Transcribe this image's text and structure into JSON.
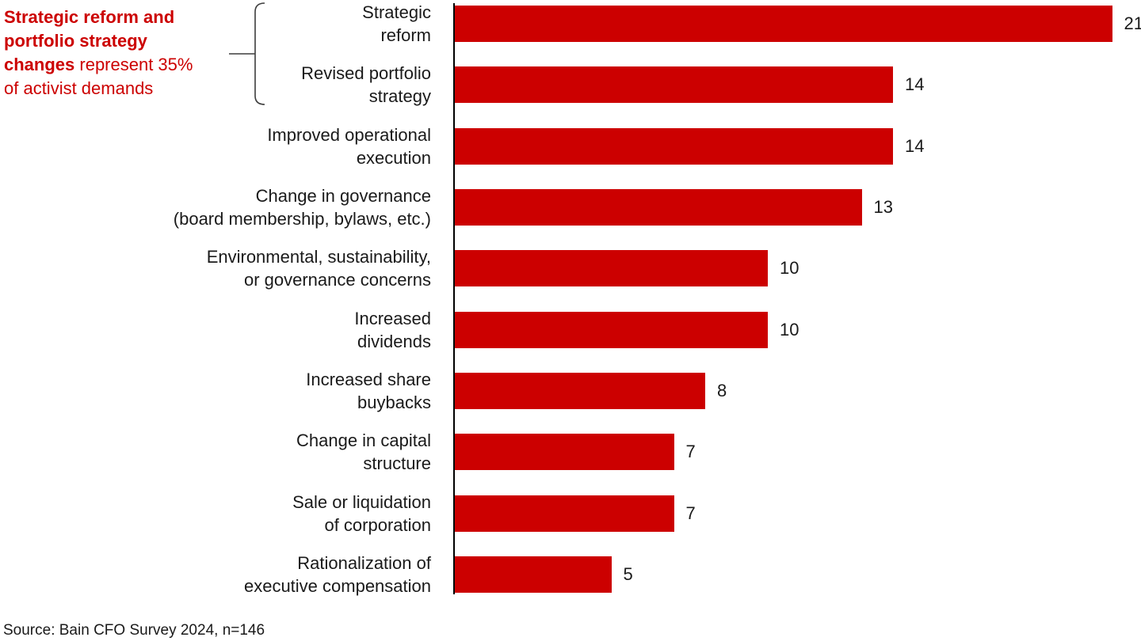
{
  "annotation": {
    "segments": [
      {
        "text": "Strategic reform and portfolio strategy changes",
        "bold": true
      },
      {
        "text": " represent 35% of activist demands",
        "bold": false
      }
    ]
  },
  "source": "Source: Bain CFO Survey 2024, n=146",
  "colors": {
    "bar": "#cc0000",
    "annotation_text": "#cc0000",
    "text": "#1a1a1a",
    "axis": "#000000",
    "connector": "#3d3d3d",
    "background": "#ffffff"
  },
  "chart_data": {
    "type": "bar",
    "orientation": "horizontal",
    "title": "",
    "xlabel": "",
    "ylabel": "",
    "xlim": [
      0,
      21
    ],
    "grid": false,
    "legend": false,
    "categories": [
      "Strategic reform",
      "Revised portfolio strategy",
      "Improved operational execution",
      "Change in governance (board membership, bylaws, etc.)",
      "Environmental, sustainability, or governance concerns",
      "Increased dividends",
      "Increased share buybacks",
      "Change in capital structure",
      "Sale or liquidation of corporation",
      "Rationalization of executive compensation"
    ],
    "label_lines": [
      [
        "Strategic",
        "reform"
      ],
      [
        "Revised portfolio",
        "strategy"
      ],
      [
        "Improved operational",
        "execution"
      ],
      [
        "Change in governance",
        "(board membership, bylaws, etc.)"
      ],
      [
        "Environmental, sustainability,",
        "or governance concerns"
      ],
      [
        "Increased",
        "dividends"
      ],
      [
        "Increased share",
        "buybacks"
      ],
      [
        "Change in capital",
        "structure"
      ],
      [
        "Sale or liquidation",
        "of corporation"
      ],
      [
        "Rationalization of",
        "executive compensation"
      ]
    ],
    "values": [
      21,
      14,
      14,
      13,
      10,
      10,
      8,
      7,
      7,
      5
    ],
    "value_labels": [
      "21",
      "14",
      "14",
      "13",
      "10",
      "10",
      "8",
      "7",
      "7",
      "5"
    ],
    "annotation_note": "Strategic reform and portfolio strategy changes represent 35% of activist demands"
  }
}
